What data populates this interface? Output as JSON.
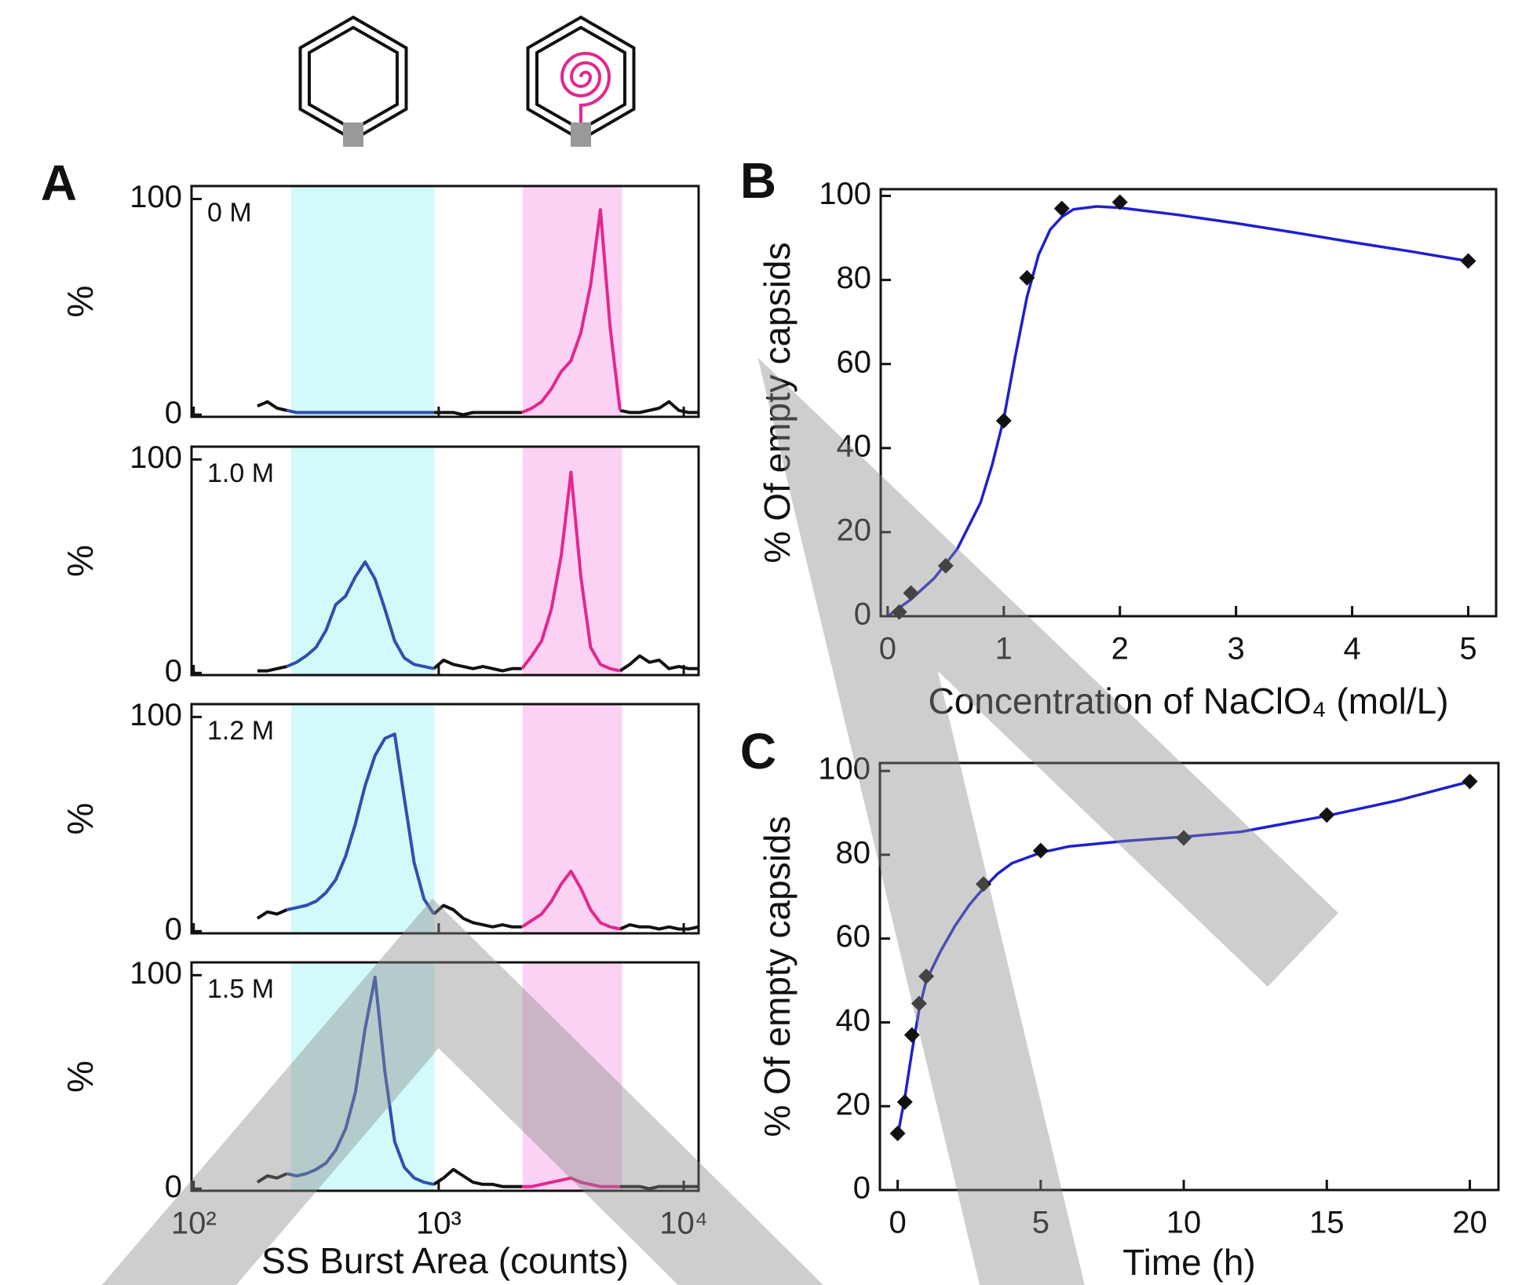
{
  "chart_data": [
    {
      "type": "line",
      "panel_label": "A",
      "annotation": "0 M",
      "ylabel": "%",
      "log_x": true,
      "x": [
        182,
        200,
        219,
        240,
        263,
        288,
        316,
        347,
        380,
        417,
        457,
        501,
        550,
        603,
        661,
        724,
        794,
        871,
        955,
        1047,
        1148,
        1259,
        1380,
        1514,
        1660,
        1820,
        1995,
        2188,
        2399,
        2630,
        2884,
        3162,
        3467,
        3802,
        4169,
        4571,
        5012,
        5495,
        6026,
        6607,
        7244,
        7943,
        8710,
        9550,
        10471,
        11482
      ],
      "xlim": [
        98,
        11500
      ],
      "xticks": [
        100,
        1000,
        10000
      ],
      "xtick_labels": false,
      "ylim": [
        -1,
        106
      ],
      "yticks": [
        0,
        100
      ],
      "bands": [
        {
          "from": 250,
          "to": 960,
          "color": "#d2fafa"
        },
        {
          "from": 2200,
          "to": 5600,
          "color": "#fbd2f3"
        }
      ],
      "series": [
        {
          "color": "#111111",
          "values": [
            4,
            6,
            3,
            2,
            null,
            null,
            null,
            null,
            null,
            null,
            null,
            null,
            null,
            null,
            null,
            null,
            null,
            null,
            1,
            1,
            1,
            0,
            1,
            1,
            1,
            1,
            1,
            1,
            null,
            null,
            null,
            null,
            null,
            null,
            null,
            null,
            null,
            2,
            1,
            1,
            2,
            3,
            6,
            2,
            1,
            1
          ]
        },
        {
          "color": "#2f4fb0",
          "values": [
            null,
            null,
            null,
            2,
            1,
            1,
            1,
            1,
            1,
            1,
            1,
            1,
            1,
            1,
            1,
            1,
            1,
            1,
            1,
            null,
            null,
            null,
            null,
            null,
            null,
            null,
            null,
            null,
            null,
            null,
            null,
            null,
            null,
            null,
            null,
            null,
            null,
            null,
            null,
            null,
            null,
            null,
            null,
            null,
            null,
            null
          ]
        },
        {
          "color": "#e3278e",
          "values": [
            null,
            null,
            null,
            null,
            null,
            null,
            null,
            null,
            null,
            null,
            null,
            null,
            null,
            null,
            null,
            null,
            null,
            null,
            null,
            null,
            null,
            null,
            null,
            null,
            null,
            null,
            null,
            1,
            3,
            6,
            12,
            20,
            25,
            38,
            60,
            95,
            40,
            2,
            null,
            null,
            null,
            null,
            null,
            null,
            null,
            null
          ]
        }
      ]
    },
    {
      "type": "line",
      "annotation": "1.0 M",
      "ylabel": "%",
      "log_x": true,
      "x": [
        182,
        200,
        219,
        240,
        263,
        288,
        316,
        347,
        380,
        417,
        457,
        501,
        550,
        603,
        661,
        724,
        794,
        871,
        955,
        1047,
        1148,
        1259,
        1380,
        1514,
        1660,
        1820,
        1995,
        2188,
        2399,
        2630,
        2884,
        3162,
        3467,
        3802,
        4169,
        4571,
        5012,
        5495,
        6026,
        6607,
        7244,
        7943,
        8710,
        9550,
        10471,
        11482
      ],
      "xlim": [
        98,
        11500
      ],
      "xticks": [
        100,
        1000,
        10000
      ],
      "xtick_labels": false,
      "ylim": [
        -1,
        106
      ],
      "yticks": [
        0,
        100
      ],
      "bands": [
        {
          "from": 250,
          "to": 960,
          "color": "#d2fafa"
        },
        {
          "from": 2200,
          "to": 5600,
          "color": "#fbd2f3"
        }
      ],
      "series": [
        {
          "color": "#111111",
          "values": [
            1,
            1,
            2,
            3,
            null,
            null,
            null,
            null,
            null,
            null,
            null,
            null,
            null,
            null,
            null,
            null,
            null,
            null,
            2,
            6,
            4,
            3,
            2,
            3,
            2,
            1,
            2,
            2,
            null,
            null,
            null,
            null,
            null,
            null,
            null,
            null,
            null,
            1,
            4,
            8,
            5,
            6,
            2,
            3,
            2,
            2
          ]
        },
        {
          "color": "#2f4fb0",
          "values": [
            null,
            null,
            null,
            3,
            5,
            8,
            12,
            20,
            32,
            36,
            45,
            52,
            44,
            30,
            15,
            7,
            4,
            3,
            2,
            null,
            null,
            null,
            null,
            null,
            null,
            null,
            null,
            null,
            null,
            null,
            null,
            null,
            null,
            null,
            null,
            null,
            null,
            null,
            null,
            null,
            null,
            null,
            null,
            null,
            null,
            null
          ]
        },
        {
          "color": "#e3278e",
          "values": [
            null,
            null,
            null,
            null,
            null,
            null,
            null,
            null,
            null,
            null,
            null,
            null,
            null,
            null,
            null,
            null,
            null,
            null,
            null,
            null,
            null,
            null,
            null,
            null,
            null,
            null,
            null,
            2,
            8,
            15,
            30,
            55,
            94,
            45,
            12,
            4,
            2,
            1,
            null,
            null,
            null,
            null,
            null,
            null,
            null,
            null
          ]
        }
      ]
    },
    {
      "type": "line",
      "annotation": "1.2 M",
      "ylabel": "%",
      "log_x": true,
      "x": [
        182,
        200,
        219,
        240,
        263,
        288,
        316,
        347,
        380,
        417,
        457,
        501,
        550,
        603,
        661,
        724,
        794,
        871,
        955,
        1047,
        1148,
        1259,
        1380,
        1514,
        1660,
        1820,
        1995,
        2188,
        2399,
        2630,
        2884,
        3162,
        3467,
        3802,
        4169,
        4571,
        5012,
        5495,
        6026,
        6607,
        7244,
        7943,
        8710,
        9550,
        10471,
        11482
      ],
      "xlim": [
        98,
        11500
      ],
      "xticks": [
        100,
        1000,
        10000
      ],
      "xtick_labels": false,
      "ylim": [
        -1,
        106
      ],
      "yticks": [
        0,
        100
      ],
      "bands": [
        {
          "from": 250,
          "to": 960,
          "color": "#d2fafa"
        },
        {
          "from": 2200,
          "to": 5600,
          "color": "#fbd2f3"
        }
      ],
      "series": [
        {
          "color": "#111111",
          "values": [
            6,
            9,
            8,
            10,
            null,
            null,
            null,
            null,
            null,
            null,
            null,
            null,
            null,
            null,
            null,
            null,
            null,
            null,
            8,
            12,
            10,
            6,
            4,
            3,
            2,
            3,
            2,
            2,
            null,
            null,
            null,
            null,
            null,
            null,
            null,
            null,
            null,
            1,
            3,
            2,
            2,
            1,
            2,
            1,
            1,
            2
          ]
        },
        {
          "color": "#2f4fb0",
          "values": [
            null,
            null,
            null,
            10,
            11,
            12,
            14,
            18,
            24,
            35,
            50,
            68,
            82,
            90,
            92,
            62,
            32,
            15,
            8,
            null,
            null,
            null,
            null,
            null,
            null,
            null,
            null,
            null,
            null,
            null,
            null,
            null,
            null,
            null,
            null,
            null,
            null,
            null,
            null,
            null,
            null,
            null,
            null,
            null,
            null,
            null
          ]
        },
        {
          "color": "#e3278e",
          "values": [
            null,
            null,
            null,
            null,
            null,
            null,
            null,
            null,
            null,
            null,
            null,
            null,
            null,
            null,
            null,
            null,
            null,
            null,
            null,
            null,
            null,
            null,
            null,
            null,
            null,
            null,
            null,
            2,
            5,
            8,
            14,
            22,
            28,
            20,
            10,
            4,
            2,
            1,
            null,
            null,
            null,
            null,
            null,
            null,
            null,
            null
          ]
        }
      ]
    },
    {
      "type": "line",
      "annotation": "1.5 M",
      "ylabel": "%",
      "log_x": true,
      "xlabel": "SS Burst Area (counts)",
      "x": [
        182,
        200,
        219,
        240,
        263,
        288,
        316,
        347,
        380,
        417,
        457,
        501,
        550,
        603,
        661,
        724,
        794,
        871,
        955,
        1047,
        1148,
        1259,
        1380,
        1514,
        1660,
        1820,
        1995,
        2188,
        2399,
        2630,
        2884,
        3162,
        3467,
        3802,
        4169,
        4571,
        5012,
        5495,
        6026,
        6607,
        7244,
        7943,
        8710,
        9550,
        10471,
        11482
      ],
      "xlim": [
        98,
        11500
      ],
      "xticks": [
        {
          "value": 100,
          "label": "10²"
        },
        {
          "value": 1000,
          "label": "10³"
        },
        {
          "value": 10000,
          "label": "10⁴"
        }
      ],
      "ylim": [
        -1,
        106
      ],
      "yticks": [
        0,
        100
      ],
      "bands": [
        {
          "from": 250,
          "to": 960,
          "color": "#d2fafa"
        },
        {
          "from": 2200,
          "to": 5600,
          "color": "#fbd2f3"
        }
      ],
      "series": [
        {
          "color": "#111111",
          "values": [
            3,
            6,
            5,
            7,
            null,
            null,
            null,
            null,
            null,
            null,
            null,
            null,
            null,
            null,
            null,
            null,
            null,
            null,
            2,
            5,
            9,
            6,
            3,
            2,
            2,
            1,
            1,
            1,
            null,
            null,
            null,
            null,
            null,
            null,
            null,
            null,
            null,
            1,
            1,
            1,
            0,
            1,
            1,
            1,
            1,
            1
          ]
        },
        {
          "color": "#2f4fb0",
          "values": [
            null,
            null,
            null,
            7,
            6,
            7,
            9,
            12,
            18,
            28,
            45,
            75,
            99,
            55,
            22,
            10,
            5,
            3,
            2,
            null,
            null,
            null,
            null,
            null,
            null,
            null,
            null,
            null,
            null,
            null,
            null,
            null,
            null,
            null,
            null,
            null,
            null,
            null,
            null,
            null,
            null,
            null,
            null,
            null,
            null,
            null
          ]
        },
        {
          "color": "#e3278e",
          "values": [
            null,
            null,
            null,
            null,
            null,
            null,
            null,
            null,
            null,
            null,
            null,
            null,
            null,
            null,
            null,
            null,
            null,
            null,
            null,
            null,
            null,
            null,
            null,
            null,
            null,
            null,
            null,
            1,
            1,
            2,
            3,
            4,
            5,
            3,
            2,
            1,
            1,
            1,
            null,
            null,
            null,
            null,
            null,
            null,
            null,
            null
          ]
        }
      ]
    },
    {
      "type": "scatter",
      "panel_label": "B",
      "xlabel": "Concentration of NaClO₄ (mol/L)",
      "ylabel": "% Of empty capsids",
      "x": [
        0.1,
        0.2,
        0.5,
        1,
        1.2,
        1.5,
        2,
        5
      ],
      "values": [
        1,
        5.5,
        12,
        46.5,
        80.5,
        97,
        98.5,
        84.5
      ],
      "color": "#111111",
      "fit": {
        "color": "#1f1fd0",
        "x": [
          0,
          0.2,
          0.4,
          0.6,
          0.8,
          0.9,
          1,
          1.1,
          1.2,
          1.3,
          1.4,
          1.5,
          1.6,
          1.8,
          2,
          2.5,
          3,
          3.5,
          4,
          4.5,
          5
        ],
        "values": [
          0,
          4,
          9,
          16,
          27,
          36,
          47,
          62,
          76,
          86,
          92,
          95,
          96.8,
          97.5,
          97.2,
          95.5,
          93.5,
          91.3,
          89,
          86.8,
          84.5
        ]
      },
      "xlim": [
        -0.06,
        5.24
      ],
      "xticks": [
        0,
        1,
        2,
        3,
        4,
        5
      ],
      "ylim": [
        0,
        101.6
      ],
      "yticks": [
        0,
        20,
        40,
        60,
        80,
        100
      ]
    },
    {
      "type": "scatter",
      "panel_label": "C",
      "xlabel": "Time (h)",
      "ylabel": "% Of empty capsids",
      "x": [
        0,
        0.25,
        0.5,
        0.75,
        1,
        3,
        5,
        10,
        15,
        20
      ],
      "values": [
        13.5,
        21,
        37,
        44.5,
        51,
        73,
        81,
        84,
        89.5,
        97.5
      ],
      "color": "#111111",
      "fit": {
        "color": "#1f1fd0",
        "x": [
          0,
          0.25,
          0.5,
          0.75,
          1,
          1.5,
          2,
          2.5,
          3,
          3.5,
          4,
          5,
          6,
          8,
          10,
          12,
          15,
          17.5,
          20
        ],
        "values": [
          13,
          22,
          33,
          43,
          50,
          57,
          63,
          68,
          72,
          75.5,
          78,
          80.5,
          82,
          83.3,
          84.3,
          85.5,
          89.3,
          93,
          97.5
        ]
      },
      "xlim": [
        -0.62,
        21
      ],
      "xticks": [
        0,
        5,
        10,
        15,
        20
      ],
      "ylim": [
        0,
        101.9
      ],
      "yticks": [
        0,
        20,
        40,
        60,
        80,
        100
      ]
    }
  ]
}
